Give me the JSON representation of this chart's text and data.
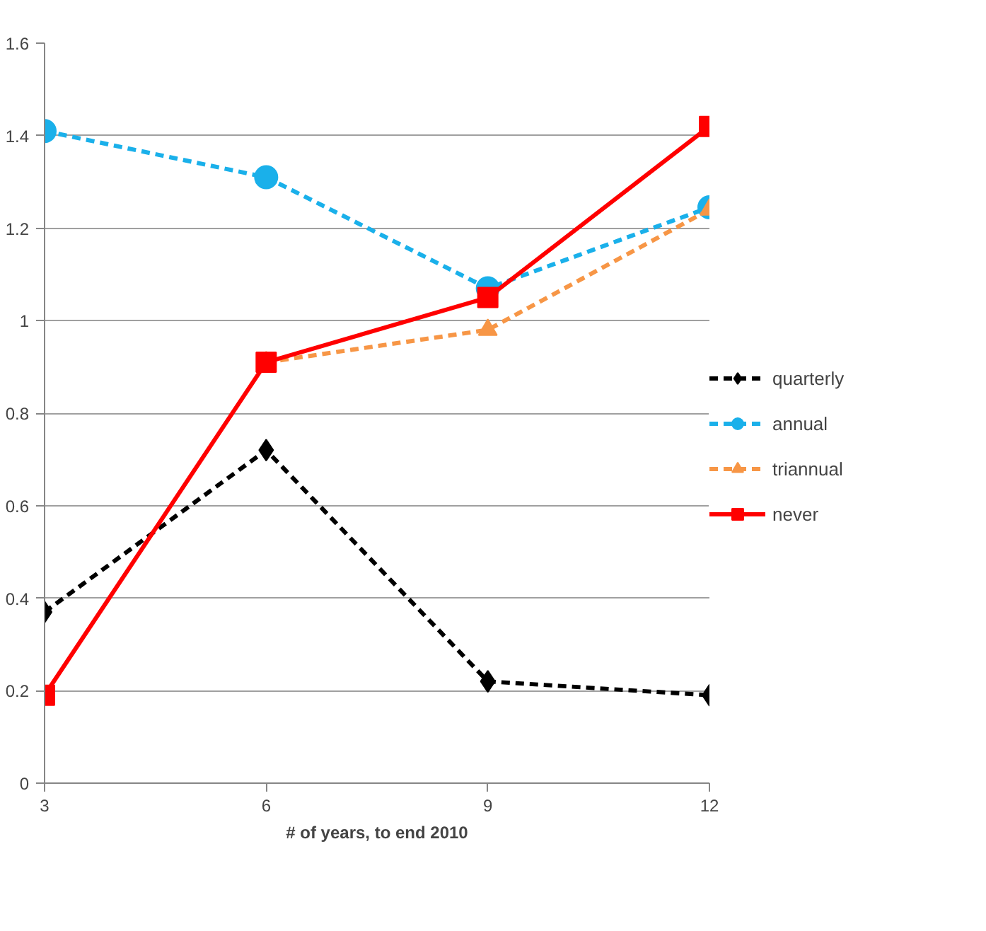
{
  "chart_data": {
    "type": "line",
    "xlabel": "# of years, to end 2010",
    "x": [
      3,
      6,
      9,
      12
    ],
    "series": [
      {
        "name": "quarterly",
        "color": "#000000",
        "values": [
          0.37,
          0.72,
          0.22,
          0.19
        ],
        "marker": "diamond",
        "line_style": "dashed"
      },
      {
        "name": "annual",
        "color": "#1ab0ea",
        "values": [
          1.41,
          1.31,
          1.07,
          1.245
        ],
        "marker": "circle",
        "line_style": "dashed"
      },
      {
        "name": "triannual",
        "color": "#f79646",
        "values": [
          null,
          0.91,
          0.98,
          1.24
        ],
        "marker": "triangle",
        "line_style": "dashed"
      },
      {
        "name": "never",
        "color": "#ff0000",
        "values": [
          0.19,
          0.91,
          1.05,
          1.42
        ],
        "marker": "square",
        "line_style": "solid"
      }
    ],
    "xlim": [
      3,
      12
    ],
    "xticks": [
      3,
      6,
      9,
      12
    ],
    "ylim": [
      0,
      1.6
    ],
    "yticks": [
      0,
      0.2,
      0.4,
      0.6,
      0.8,
      1,
      1.2,
      1.4,
      1.6
    ],
    "grid": "y",
    "legend": "right"
  }
}
